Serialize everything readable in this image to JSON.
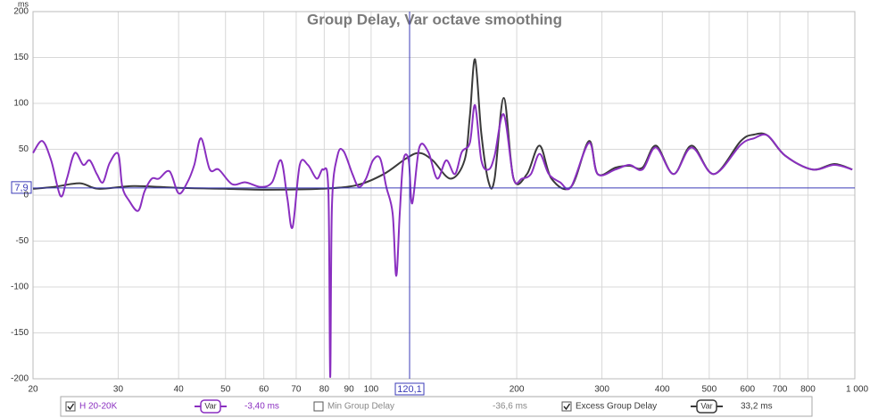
{
  "chart_data": {
    "type": "line",
    "title": "Group Delay, Var octave smoothing",
    "y_label": "ms",
    "log_x": true,
    "grid": true,
    "xlim": [
      20,
      1000
    ],
    "ylim": [
      -200,
      200
    ],
    "xticks": [
      20,
      30,
      40,
      50,
      60,
      70,
      80,
      90,
      100,
      200,
      300,
      400,
      500,
      600,
      700,
      800,
      {
        "value": 1000,
        "label": "1 000 Hz"
      }
    ],
    "yticks": [
      -200,
      -150,
      -100,
      -50,
      0,
      50,
      100,
      150,
      200
    ],
    "cursor": {
      "color": "#3b3bb8",
      "x": {
        "value": 120.1,
        "label": "120,1"
      },
      "y": {
        "value": 7.9,
        "label": "7,9"
      }
    },
    "series": [
      {
        "name": "H 20-20K",
        "color": "#8a2fc0",
        "checked": true,
        "smoothing": "Var",
        "readout": "-3,40 ms",
        "x": [
          20,
          20.9,
          21.8,
          22.8,
          23.5,
          24.4,
          25.4,
          26.2,
          27.1,
          27.9,
          28.8,
          30,
          30.6,
          31.6,
          33,
          34,
          35.2,
          36.4,
          38.3,
          40,
          41.7,
          43.1,
          44.5,
          46.4,
          48.4,
          51.6,
          55,
          59.1,
          62.4,
          65.1,
          67.1,
          68.8,
          71.2,
          74,
          77.2,
          79.6,
          81.6,
          82.3,
          83,
          85.2,
          87.7,
          91.5,
          94.3,
          97.6,
          100.9,
          104.4,
          107.5,
          110.8,
          112.7,
          114.6,
          116.6,
          119.6,
          121.6,
          125.8,
          131.3,
          137,
          143,
          149,
          154,
          160,
          164,
          169,
          175,
          180,
          188,
          197,
          205,
          214,
          223,
          233,
          246,
          259,
          282,
          294,
          320,
          342,
          364,
          388,
          422,
          460,
          511,
          581,
          619,
          660,
          718,
          816,
          907,
          988
        ],
        "values": [
          46,
          59,
          38,
          -1,
          18,
          46,
          33,
          38,
          23,
          14,
          35,
          45,
          9,
          -6,
          -17,
          4,
          18,
          18,
          26,
          2,
          14,
          33,
          62,
          28,
          28,
          12,
          14,
          9,
          14,
          38,
          -3,
          -35,
          33,
          33,
          18,
          28,
          4,
          -198,
          -11,
          43,
          48,
          23,
          9,
          18,
          38,
          40,
          9,
          -20,
          -88,
          -20,
          38,
          38,
          -9,
          52,
          47,
          18,
          38,
          23,
          47,
          57,
          98,
          38,
          28,
          43,
          88,
          18,
          18,
          23,
          45,
          23,
          14,
          9,
          57,
          23,
          28,
          33,
          28,
          52,
          23,
          52,
          23,
          55,
          62,
          65,
          43,
          28,
          33,
          28
        ]
      },
      {
        "name": "Min Group Delay",
        "color": "#999999",
        "checked": false,
        "readout": "-36,6 ms"
      },
      {
        "name": "Excess Group Delay",
        "color": "#3a3a3a",
        "checked": true,
        "smoothing": "Var",
        "readout": "33,2 ms",
        "x": [
          20,
          22.1,
          25,
          27.3,
          32.3,
          40,
          49.4,
          61.1,
          78.9,
          93.5,
          106.2,
          118.1,
          125.8,
          134,
          146,
          156,
          160,
          164,
          169,
          175,
          180,
          188,
          197,
          210,
          223,
          236,
          259,
          282,
          294,
          320,
          342,
          364,
          388,
          422,
          460,
          511,
          581,
          619,
          660,
          718,
          816,
          907,
          988
        ],
        "values": [
          7,
          9,
          13,
          7,
          10,
          8,
          7,
          6,
          7,
          11,
          23,
          40,
          46,
          38,
          18,
          38,
          86,
          148,
          67,
          14,
          18,
          106,
          18,
          23,
          54,
          18,
          9,
          59,
          23,
          30,
          32,
          30,
          54,
          23,
          54,
          23,
          59,
          66,
          65,
          43,
          28,
          34,
          28
        ]
      }
    ]
  }
}
